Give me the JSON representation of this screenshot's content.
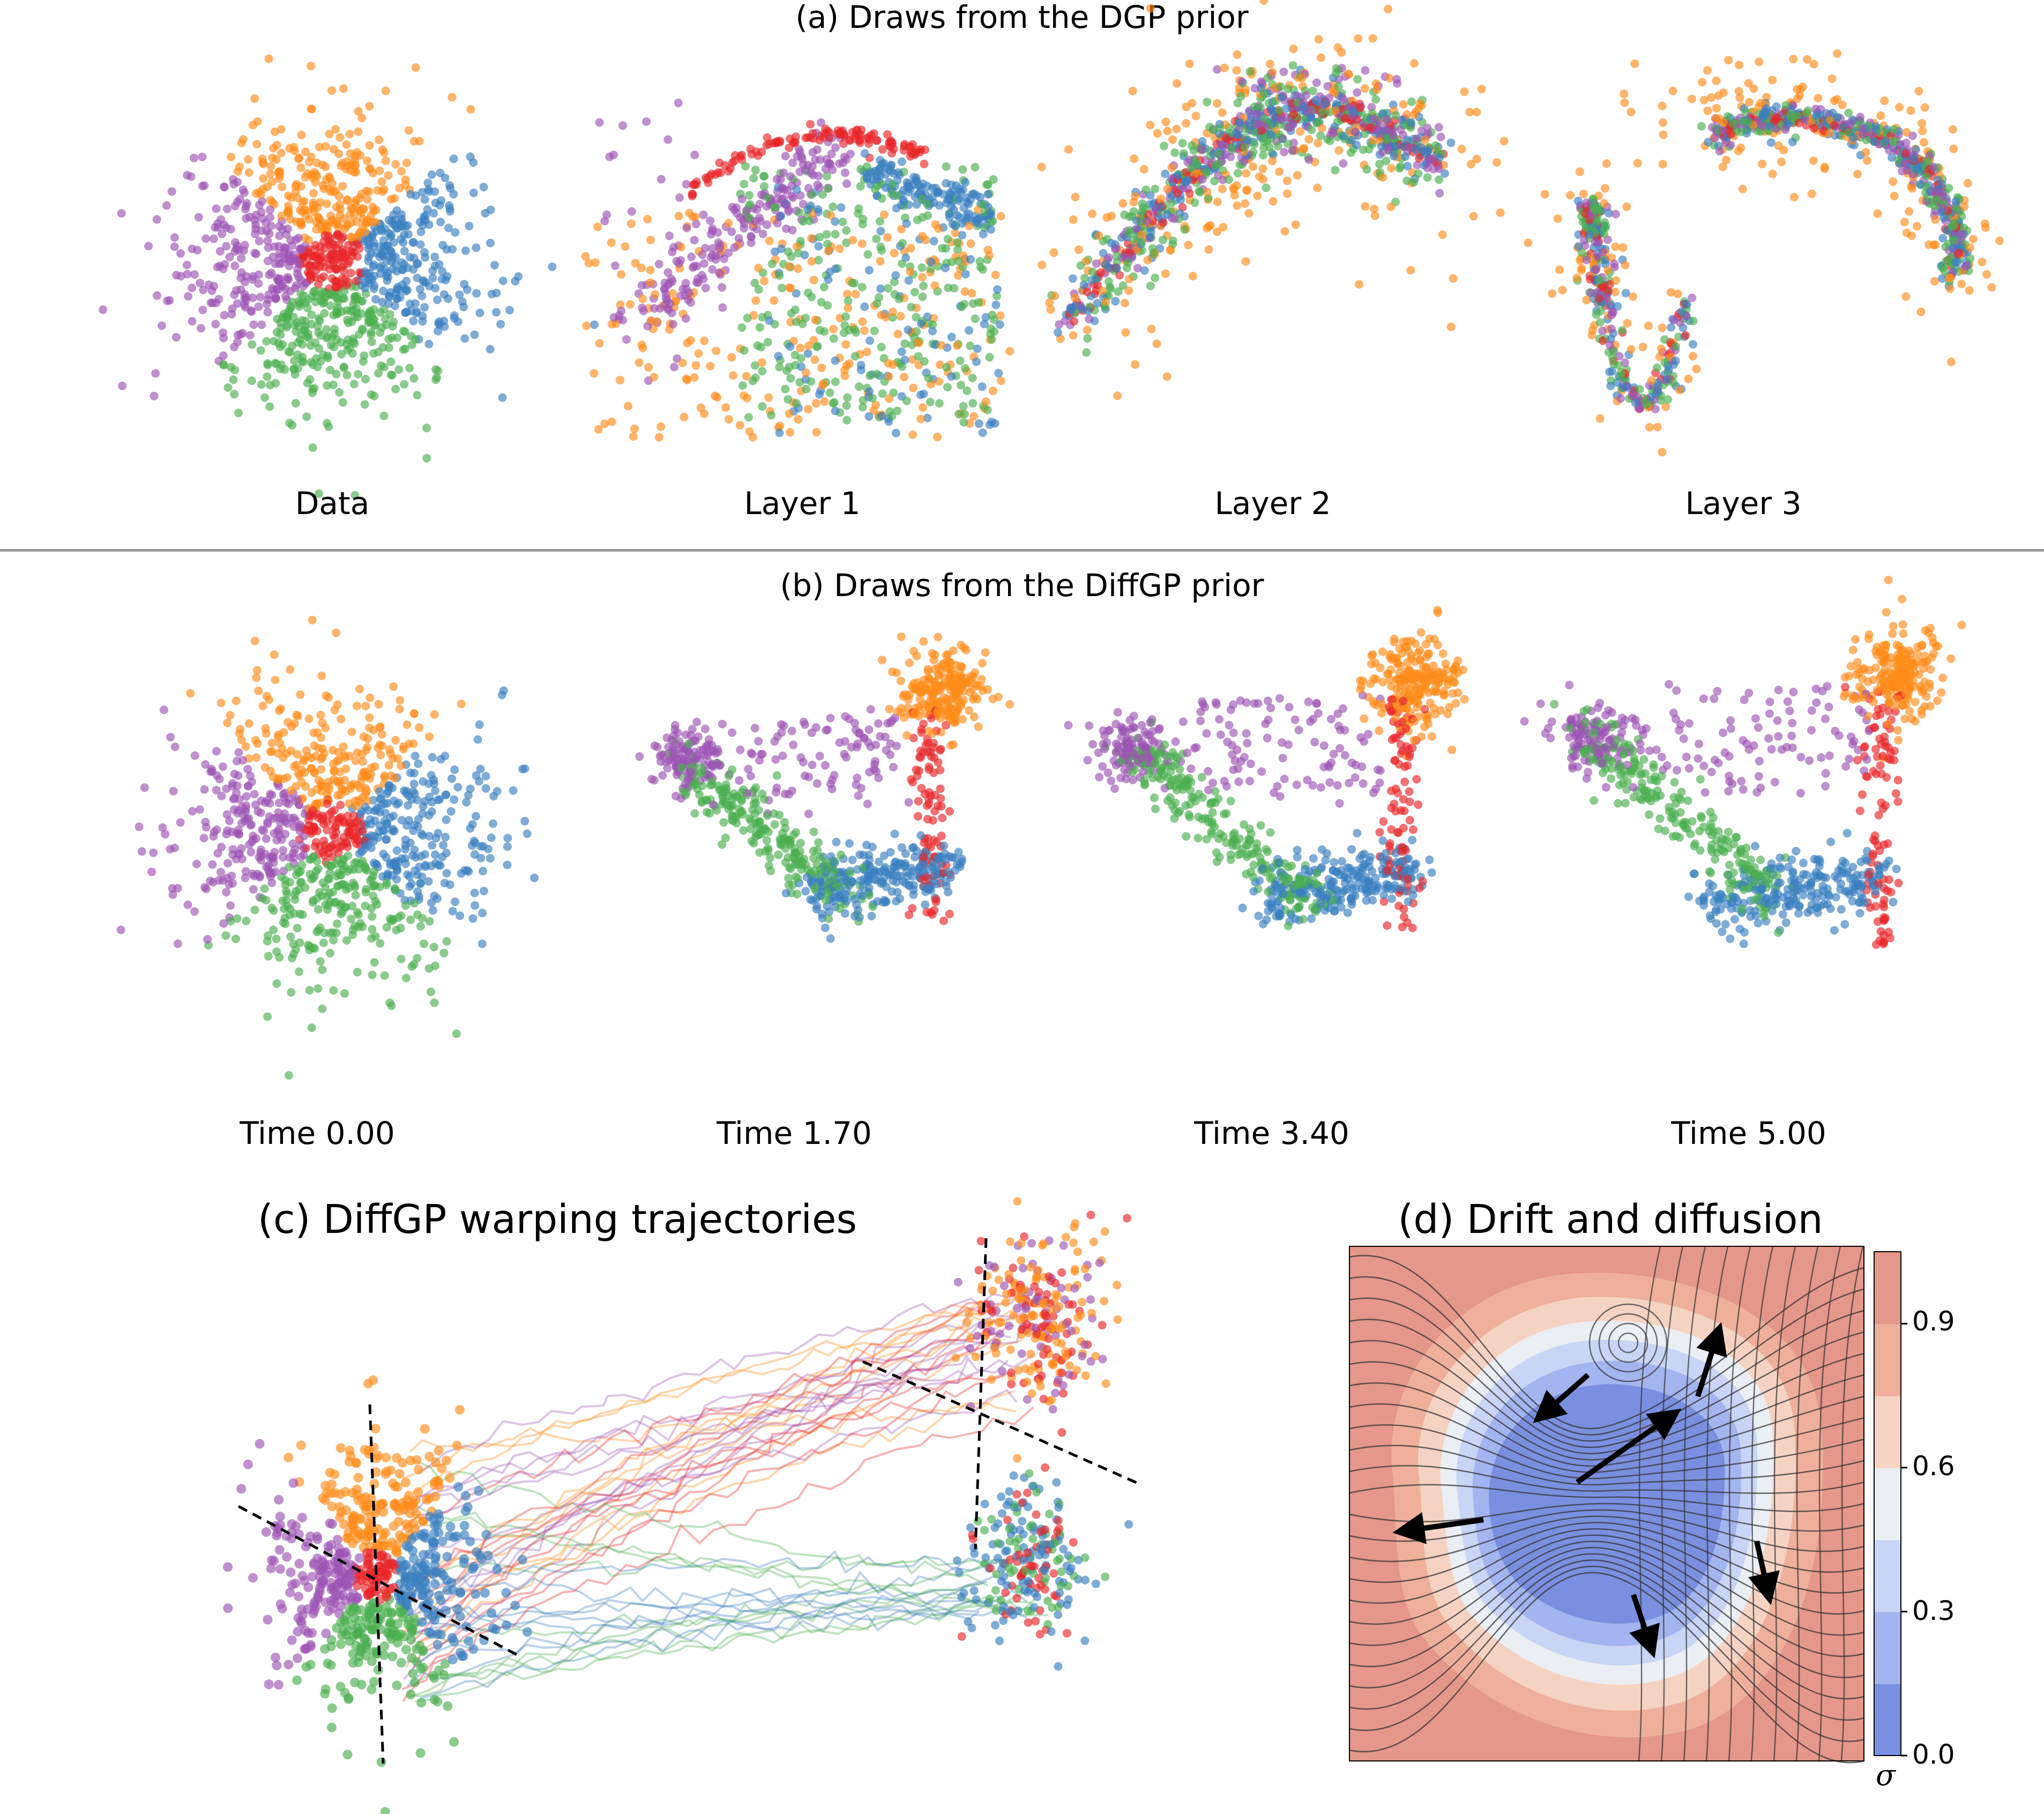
{
  "figure": {
    "section_a": {
      "title": "(a) Draws from the DGP prior",
      "panels": [
        {
          "label": "Data",
          "kind": "quadrants"
        },
        {
          "label": "Layer 1",
          "kind": "dgp1"
        },
        {
          "label": "Layer 2",
          "kind": "dgp2"
        },
        {
          "label": "Layer 3",
          "kind": "dgp3"
        }
      ]
    },
    "section_b": {
      "title": "(b) Draws from the DiffGP prior",
      "panels": [
        {
          "label": "Time 0.00",
          "t": 0.0
        },
        {
          "label": "Time 1.70",
          "t": 1.7
        },
        {
          "label": "Time 3.40",
          "t": 3.4
        },
        {
          "label": "Time 5.00",
          "t": 5.0
        }
      ]
    },
    "section_c": {
      "title": "(c) DiffGP warping trajectories"
    },
    "section_d": {
      "title": "(d) Drift and diffusion",
      "colorbar": {
        "label": "σ",
        "ticks": [
          "0.9",
          "0.6",
          "0.3",
          "0.0"
        ],
        "range": [
          0.0,
          1.05
        ],
        "colors": [
          "#7b8fe0",
          "#a3b5ef",
          "#c8d5f5",
          "#ebeef2",
          "#f5d3c3",
          "#eeb09c",
          "#e4978a"
        ]
      }
    },
    "classes": [
      {
        "name": "orange",
        "color": "#ff8c1a"
      },
      {
        "name": "purple",
        "color": "#9d55b4"
      },
      {
        "name": "green",
        "color": "#4caf50"
      },
      {
        "name": "blue",
        "color": "#3b7fc0"
      },
      {
        "name": "red",
        "color": "#e8262a"
      }
    ]
  }
}
